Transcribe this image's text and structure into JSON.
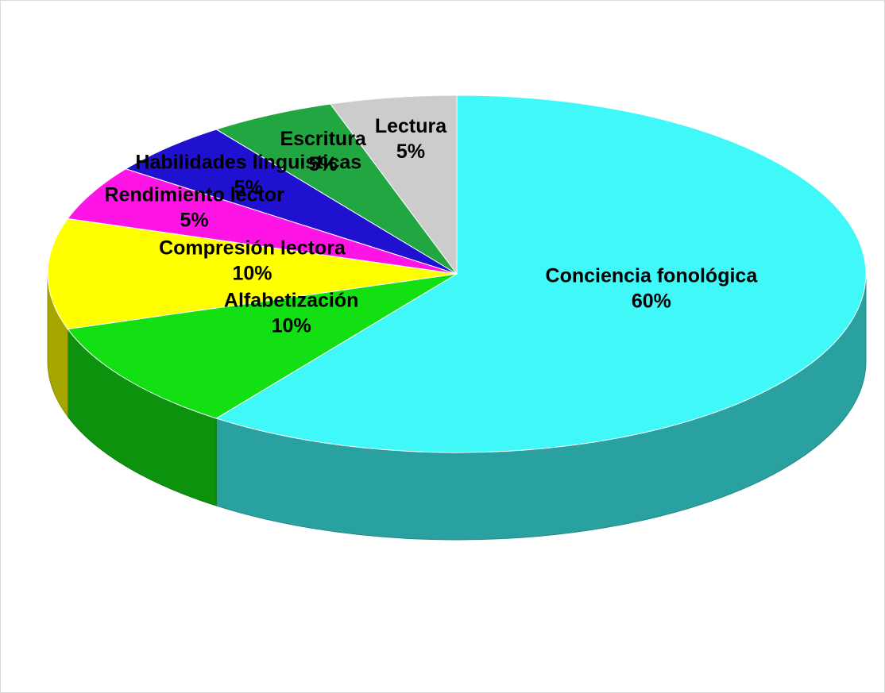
{
  "chart_data": {
    "type": "pie",
    "categories": [
      "Conciencia fonológica",
      "Alfabetización",
      "Compresión lectora",
      "Rendimiento lector",
      "Habilidades linguisticas",
      "Escritura",
      "Lectura"
    ],
    "values": [
      60,
      10,
      10,
      5,
      5,
      5,
      5
    ],
    "value_labels": [
      "60%",
      "10%",
      "10%",
      "5%",
      "5%",
      "5%",
      "5%"
    ],
    "colors": [
      "#40f8f8",
      "#12e012",
      "#ffff00",
      "#ff14e6",
      "#2010d0",
      "#22a642",
      "#cccccc"
    ]
  }
}
